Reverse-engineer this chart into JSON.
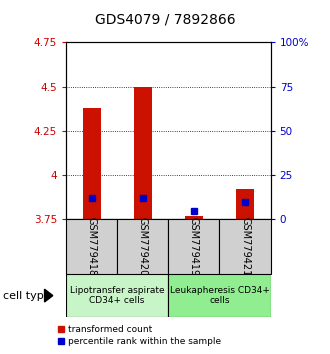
{
  "title": "GDS4079 / 7892866",
  "samples": [
    "GSM779418",
    "GSM779420",
    "GSM779419",
    "GSM779421"
  ],
  "red_values": [
    4.38,
    4.5,
    3.77,
    3.92
  ],
  "blue_percentiles": [
    12,
    12,
    5,
    10
  ],
  "ymin": 3.75,
  "ymax": 4.75,
  "yticks_left": [
    3.75,
    4.0,
    4.25,
    4.5,
    4.75
  ],
  "yticks_right": [
    0,
    25,
    50,
    75,
    100
  ],
  "ytick_labels_left": [
    "3.75",
    "4",
    "4.25",
    "4.5",
    "4.75"
  ],
  "ytick_labels_right": [
    "0",
    "25",
    "50",
    "75",
    "100%"
  ],
  "groups": [
    {
      "label": "Lipotransfer aspirate\nCD34+ cells",
      "samples": [
        0,
        1
      ],
      "color": "#c8f5c8"
    },
    {
      "label": "Leukapheresis CD34+\ncells",
      "samples": [
        2,
        3
      ],
      "color": "#90ee90"
    }
  ],
  "bar_color": "#cc1100",
  "blue_color": "#0000cc",
  "bar_width": 0.35,
  "bar_baseline": 3.75,
  "cell_type_label": "cell type",
  "legend_red": "transformed count",
  "legend_blue": "percentile rank within the sample",
  "title_fontsize": 10,
  "axis_color_left": "#cc0000",
  "axis_color_right": "#0000cc",
  "tick_label_fontsize": 7.5,
  "sample_label_fontsize": 7,
  "group_label_fontsize": 6.5
}
